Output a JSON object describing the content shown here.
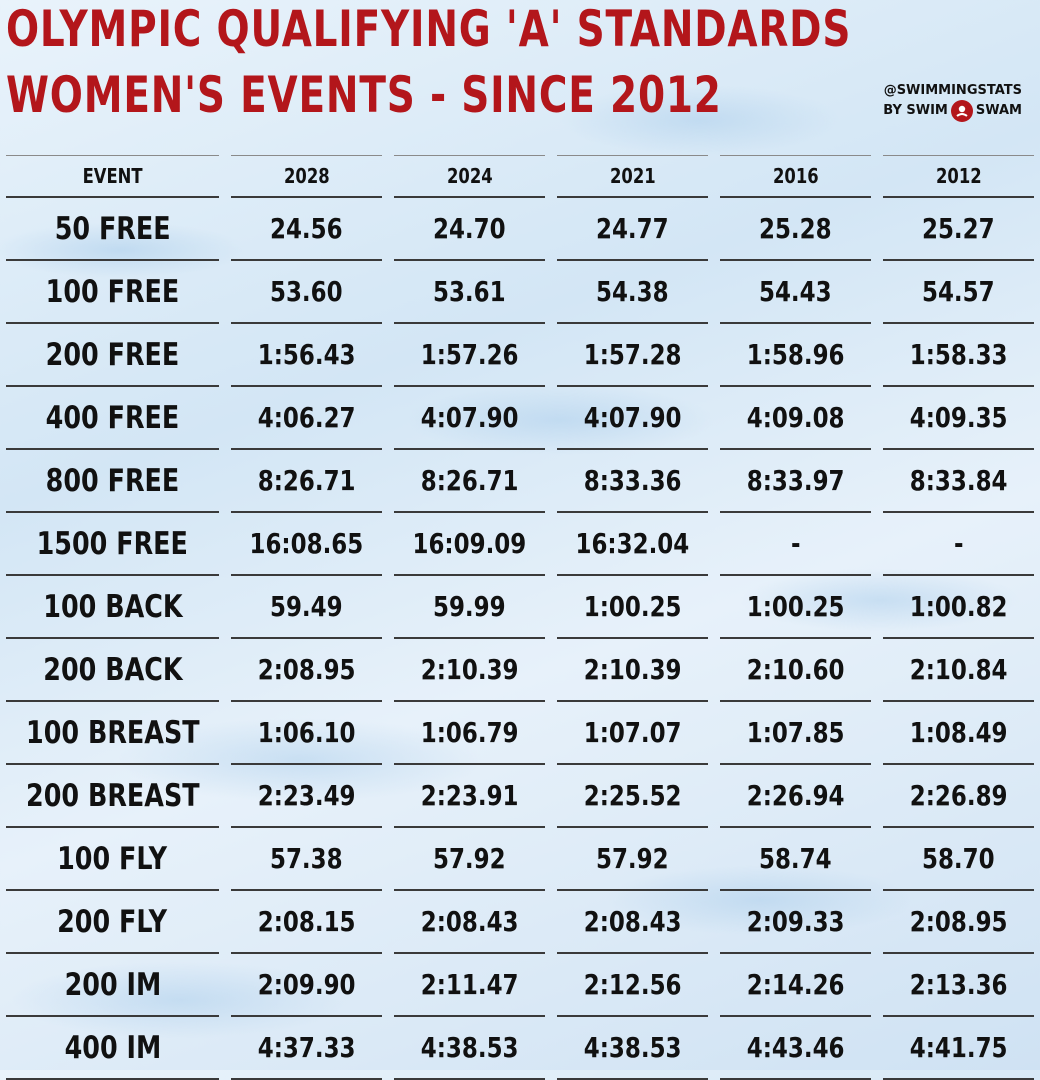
{
  "title_line1": "OLYMPIC QUALIFYING 'A' STANDARDS",
  "title_line2": "WOMEN'S EVENTS - SINCE 2012",
  "brand": {
    "handle": "@SWIMMINGSTATS",
    "by": "BY SWIM",
    "swam": "SWAM"
  },
  "table": {
    "headers": [
      "EVENT",
      "2028",
      "2024",
      "2021",
      "2016",
      "2012"
    ],
    "rows": [
      [
        "50 FREE",
        "24.56",
        "24.70",
        "24.77",
        "25.28",
        "25.27"
      ],
      [
        "100 FREE",
        "53.60",
        "53.61",
        "54.38",
        "54.43",
        "54.57"
      ],
      [
        "200 FREE",
        "1:56.43",
        "1:57.26",
        "1:57.28",
        "1:58.96",
        "1:58.33"
      ],
      [
        "400 FREE",
        "4:06.27",
        "4:07.90",
        "4:07.90",
        "4:09.08",
        "4:09.35"
      ],
      [
        "800 FREE",
        "8:26.71",
        "8:26.71",
        "8:33.36",
        "8:33.97",
        "8:33.84"
      ],
      [
        "1500 FREE",
        "16:08.65",
        "16:09.09",
        "16:32.04",
        "-",
        "-"
      ],
      [
        "100 BACK",
        "59.49",
        "59.99",
        "1:00.25",
        "1:00.25",
        "1:00.82"
      ],
      [
        "200 BACK",
        "2:08.95",
        "2:10.39",
        "2:10.39",
        "2:10.60",
        "2:10.84"
      ],
      [
        "100 BREAST",
        "1:06.10",
        "1:06.79",
        "1:07.07",
        "1:07.85",
        "1:08.49"
      ],
      [
        "200 BREAST",
        "2:23.49",
        "2:23.91",
        "2:25.52",
        "2:26.94",
        "2:26.89"
      ],
      [
        "100 FLY",
        "57.38",
        "57.92",
        "57.92",
        "58.74",
        "58.70"
      ],
      [
        "200 FLY",
        "2:08.15",
        "2:08.43",
        "2:08.43",
        "2:09.33",
        "2:08.95"
      ],
      [
        "200 IM",
        "2:09.90",
        "2:11.47",
        "2:12.56",
        "2:14.26",
        "2:13.36"
      ],
      [
        "400 IM",
        "4:37.33",
        "4:38.53",
        "4:38.53",
        "4:43.46",
        "4:41.75"
      ]
    ]
  },
  "colors": {
    "title": "#b3161b",
    "text": "#111111",
    "rule": "#3a3a3a"
  },
  "icons": {
    "logo": "swimmer-logo-icon"
  }
}
